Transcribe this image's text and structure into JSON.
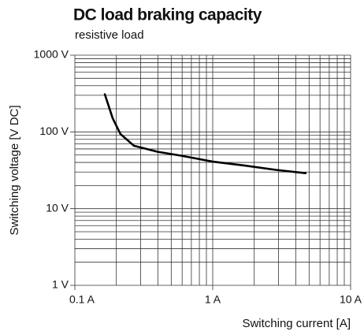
{
  "chart_data": {
    "type": "line",
    "title": "DC load braking capacity",
    "subtitle": "resistive load",
    "x_label": "Switching current [A]",
    "y_label": "Switching voltage [V DC]",
    "xscale": "log",
    "yscale": "log",
    "grid": true,
    "x": [
      0.165,
      0.188,
      0.214,
      0.268,
      0.4,
      0.59,
      1.0,
      1.69,
      2.87,
      4.72
    ],
    "series": [
      {
        "name": "DC load braking capacity",
        "color": "#000000",
        "values": [
          309,
          151,
          94,
          66,
          55,
          49,
          41,
          36.5,
          32,
          29
        ]
      }
    ],
    "xlim": [
      0.1,
      10
    ],
    "ylim": [
      1,
      1000
    ],
    "xticks": [
      {
        "value": 0.1,
        "label": "0.1 A"
      },
      {
        "value": 1,
        "label": "1 A"
      },
      {
        "value": 10,
        "label": "10 A"
      }
    ],
    "yticks": [
      {
        "value": 1,
        "label": "1 V"
      },
      {
        "value": 10,
        "label": "10 V"
      },
      {
        "value": 100,
        "label": "100 V"
      },
      {
        "value": 1000,
        "label": "1000 V"
      }
    ],
    "xminorticks": [
      0.2,
      0.3,
      0.4,
      0.5,
      0.6,
      0.7,
      0.8,
      0.9,
      2,
      3,
      4,
      5,
      6,
      7,
      8,
      9
    ],
    "yminorticks": [
      2,
      3,
      4,
      5,
      6,
      7,
      8,
      9,
      20,
      30,
      40,
      50,
      60,
      70,
      80,
      90,
      200,
      300,
      400,
      500,
      600,
      700,
      800,
      900
    ]
  }
}
